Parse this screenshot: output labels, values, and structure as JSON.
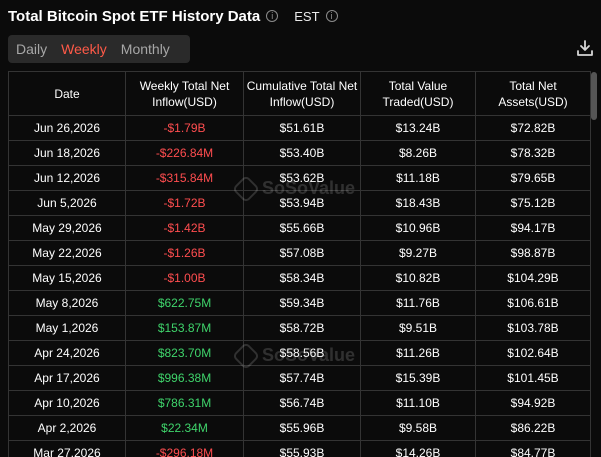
{
  "header": {
    "title": "Total Bitcoin Spot ETF History Data",
    "timezone": "EST",
    "info_icon": "i"
  },
  "tabs": [
    {
      "label": "Daily",
      "active": false
    },
    {
      "label": "Weekly",
      "active": true
    },
    {
      "label": "Monthly",
      "active": false
    }
  ],
  "toolbar": {
    "download_icon": "download-icon"
  },
  "watermark": {
    "text": "SoSoValue"
  },
  "table": {
    "columns": [
      "Date",
      "Weekly Total Net Inflow(USD)",
      "Cumulative Total Net Inflow(USD)",
      "Total Value Traded(USD)",
      "Total Net Assets(USD)"
    ],
    "rows": [
      {
        "date": "Jun 26,2026",
        "weekly": "-$1.79B",
        "cumulative": "$51.61B",
        "traded": "$13.24B",
        "assets": "$72.82B",
        "trend": "neg"
      },
      {
        "date": "Jun 18,2026",
        "weekly": "-$226.84M",
        "cumulative": "$53.40B",
        "traded": "$8.26B",
        "assets": "$78.32B",
        "trend": "neg"
      },
      {
        "date": "Jun 12,2026",
        "weekly": "-$315.84M",
        "cumulative": "$53.62B",
        "traded": "$11.18B",
        "assets": "$79.65B",
        "trend": "neg"
      },
      {
        "date": "Jun 5,2026",
        "weekly": "-$1.72B",
        "cumulative": "$53.94B",
        "traded": "$18.43B",
        "assets": "$75.12B",
        "trend": "neg"
      },
      {
        "date": "May 29,2026",
        "weekly": "-$1.42B",
        "cumulative": "$55.66B",
        "traded": "$10.96B",
        "assets": "$94.17B",
        "trend": "neg"
      },
      {
        "date": "May 22,2026",
        "weekly": "-$1.26B",
        "cumulative": "$57.08B",
        "traded": "$9.27B",
        "assets": "$98.87B",
        "trend": "neg"
      },
      {
        "date": "May 15,2026",
        "weekly": "-$1.00B",
        "cumulative": "$58.34B",
        "traded": "$10.82B",
        "assets": "$104.29B",
        "trend": "neg"
      },
      {
        "date": "May 8,2026",
        "weekly": "$622.75M",
        "cumulative": "$59.34B",
        "traded": "$11.76B",
        "assets": "$106.61B",
        "trend": "pos"
      },
      {
        "date": "May 1,2026",
        "weekly": "$153.87M",
        "cumulative": "$58.72B",
        "traded": "$9.51B",
        "assets": "$103.78B",
        "trend": "pos"
      },
      {
        "date": "Apr 24,2026",
        "weekly": "$823.70M",
        "cumulative": "$58.56B",
        "traded": "$11.26B",
        "assets": "$102.64B",
        "trend": "pos"
      },
      {
        "date": "Apr 17,2026",
        "weekly": "$996.38M",
        "cumulative": "$57.74B",
        "traded": "$15.39B",
        "assets": "$101.45B",
        "trend": "pos"
      },
      {
        "date": "Apr 10,2026",
        "weekly": "$786.31M",
        "cumulative": "$56.74B",
        "traded": "$11.10B",
        "assets": "$94.92B",
        "trend": "pos"
      },
      {
        "date": "Apr 2,2026",
        "weekly": "$22.34M",
        "cumulative": "$55.96B",
        "traded": "$9.58B",
        "assets": "$86.22B",
        "trend": "pos"
      },
      {
        "date": "Mar 27,2026",
        "weekly": "-$296.18M",
        "cumulative": "$55.93B",
        "traded": "$14.26B",
        "assets": "$84.77B",
        "trend": "neg"
      }
    ]
  },
  "colors": {
    "background": "#0b0b0b",
    "active_tab": "#ff5a48",
    "negative": "#ff4d4f",
    "positive": "#3fd46b"
  }
}
